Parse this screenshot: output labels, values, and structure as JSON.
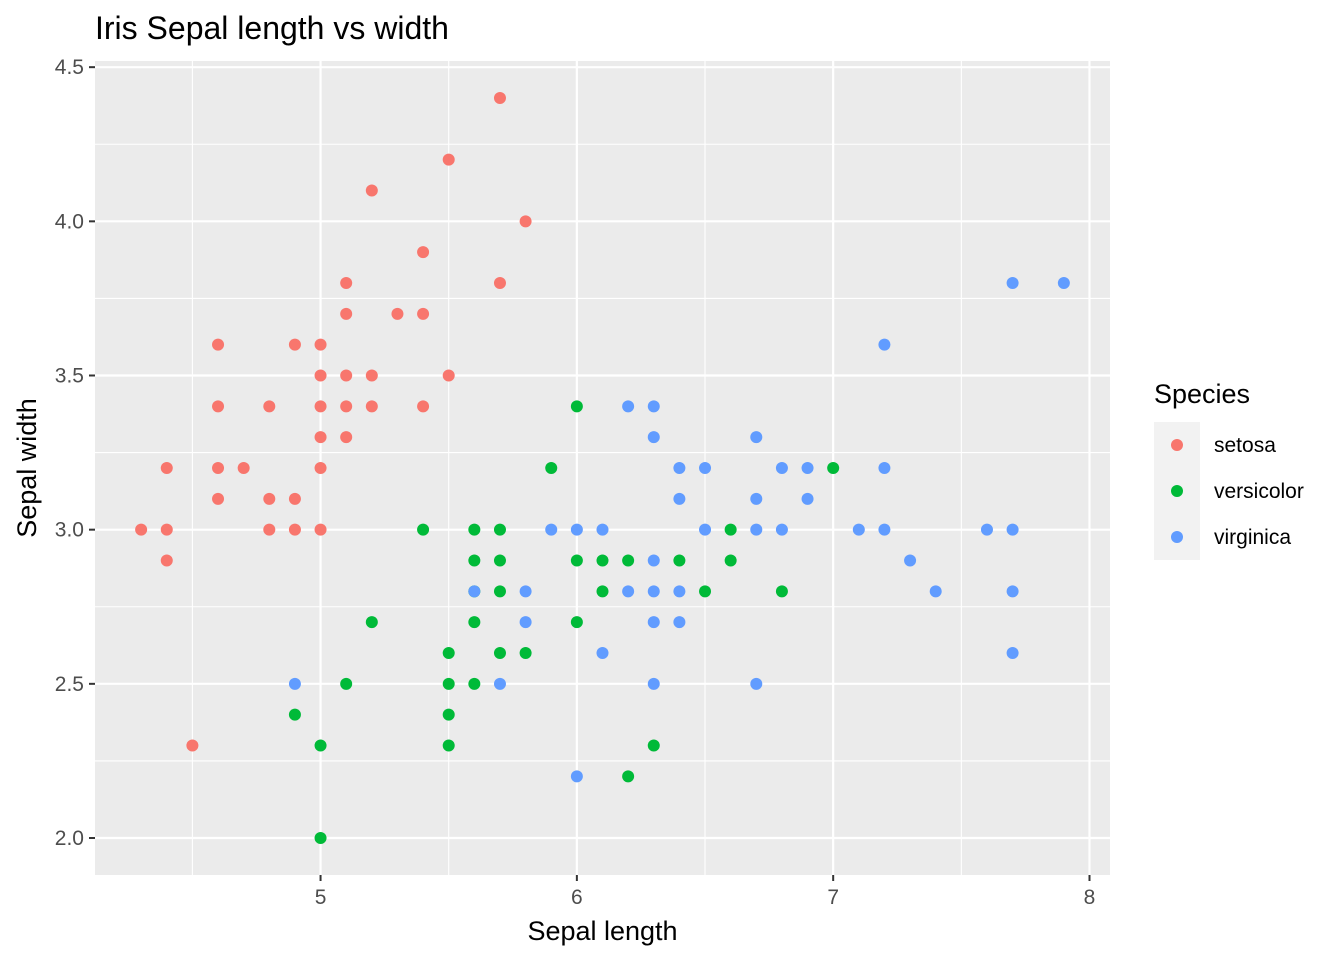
{
  "chart_data": {
    "type": "scatter",
    "title": "Iris Sepal length vs width",
    "xlabel": "Sepal length",
    "ylabel": "Sepal width",
    "xlim": [
      4.12,
      8.08
    ],
    "ylim": [
      1.88,
      4.52
    ],
    "xticks": [
      5,
      6,
      7,
      8
    ],
    "xtick_labels": [
      "5",
      "6",
      "7",
      "8"
    ],
    "yticks": [
      2.0,
      2.5,
      3.0,
      3.5,
      4.0,
      4.5
    ],
    "ytick_labels": [
      "2.0",
      "2.5",
      "3.0",
      "3.5",
      "4.0",
      "4.5"
    ],
    "grid": true,
    "legend": {
      "title": "Species",
      "position": "right",
      "entries": [
        "setosa",
        "versicolor",
        "virginica"
      ]
    },
    "colors": {
      "panel": "#ebebeb",
      "grid_major": "#ffffff",
      "setosa": "#F8766D",
      "versicolor": "#00BA38",
      "virginica": "#619CFF"
    },
    "series": [
      {
        "name": "setosa",
        "points": [
          [
            5.7,
            4.4
          ],
          [
            5.5,
            4.2
          ],
          [
            5.2,
            4.1
          ],
          [
            5.8,
            4.0
          ],
          [
            5.4,
            3.9
          ],
          [
            5.1,
            3.8
          ],
          [
            5.7,
            3.8
          ],
          [
            5.1,
            3.7
          ],
          [
            5.3,
            3.7
          ],
          [
            5.4,
            3.7
          ],
          [
            4.6,
            3.6
          ],
          [
            4.9,
            3.6
          ],
          [
            5.0,
            3.6
          ],
          [
            5.0,
            3.5
          ],
          [
            5.1,
            3.5
          ],
          [
            5.2,
            3.5
          ],
          [
            5.5,
            3.5
          ],
          [
            4.6,
            3.4
          ],
          [
            4.8,
            3.4
          ],
          [
            5.0,
            3.4
          ],
          [
            5.1,
            3.4
          ],
          [
            5.2,
            3.4
          ],
          [
            5.4,
            3.4
          ],
          [
            5.0,
            3.3
          ],
          [
            5.1,
            3.3
          ],
          [
            4.4,
            3.2
          ],
          [
            4.6,
            3.2
          ],
          [
            4.7,
            3.2
          ],
          [
            5.0,
            3.2
          ],
          [
            4.6,
            3.1
          ],
          [
            4.8,
            3.1
          ],
          [
            4.9,
            3.1
          ],
          [
            4.3,
            3.0
          ],
          [
            4.4,
            3.0
          ],
          [
            4.8,
            3.0
          ],
          [
            4.9,
            3.0
          ],
          [
            5.0,
            3.0
          ],
          [
            4.4,
            2.9
          ],
          [
            4.5,
            2.3
          ]
        ]
      },
      {
        "name": "versicolor",
        "points": [
          [
            6.0,
            3.4
          ],
          [
            5.9,
            3.2
          ],
          [
            7.0,
            3.2
          ],
          [
            5.4,
            3.0
          ],
          [
            5.6,
            3.0
          ],
          [
            5.7,
            3.0
          ],
          [
            6.6,
            3.0
          ],
          [
            5.6,
            2.9
          ],
          [
            5.7,
            2.9
          ],
          [
            6.0,
            2.9
          ],
          [
            6.1,
            2.9
          ],
          [
            6.2,
            2.9
          ],
          [
            6.4,
            2.9
          ],
          [
            6.6,
            2.9
          ],
          [
            5.6,
            2.8
          ],
          [
            5.7,
            2.8
          ],
          [
            6.1,
            2.8
          ],
          [
            6.5,
            2.8
          ],
          [
            6.8,
            2.8
          ],
          [
            5.2,
            2.7
          ],
          [
            5.6,
            2.7
          ],
          [
            6.0,
            2.7
          ],
          [
            5.5,
            2.6
          ],
          [
            5.7,
            2.6
          ],
          [
            5.8,
            2.6
          ],
          [
            5.1,
            2.5
          ],
          [
            5.5,
            2.5
          ],
          [
            5.6,
            2.5
          ],
          [
            4.9,
            2.4
          ],
          [
            5.5,
            2.4
          ],
          [
            5.0,
            2.3
          ],
          [
            5.5,
            2.3
          ],
          [
            6.3,
            2.3
          ],
          [
            6.2,
            2.2
          ],
          [
            5.0,
            2.0
          ]
        ]
      },
      {
        "name": "virginica",
        "points": [
          [
            7.7,
            3.8
          ],
          [
            7.9,
            3.8
          ],
          [
            7.2,
            3.6
          ],
          [
            6.2,
            3.4
          ],
          [
            6.3,
            3.4
          ],
          [
            6.3,
            3.3
          ],
          [
            6.7,
            3.3
          ],
          [
            6.4,
            3.2
          ],
          [
            6.5,
            3.2
          ],
          [
            6.8,
            3.2
          ],
          [
            6.9,
            3.2
          ],
          [
            7.2,
            3.2
          ],
          [
            6.4,
            3.1
          ],
          [
            6.7,
            3.1
          ],
          [
            6.9,
            3.1
          ],
          [
            5.9,
            3.0
          ],
          [
            6.0,
            3.0
          ],
          [
            6.1,
            3.0
          ],
          [
            6.5,
            3.0
          ],
          [
            6.7,
            3.0
          ],
          [
            6.8,
            3.0
          ],
          [
            7.1,
            3.0
          ],
          [
            7.2,
            3.0
          ],
          [
            7.6,
            3.0
          ],
          [
            7.7,
            3.0
          ],
          [
            6.3,
            2.9
          ],
          [
            7.3,
            2.9
          ],
          [
            5.6,
            2.8
          ],
          [
            5.8,
            2.8
          ],
          [
            6.2,
            2.8
          ],
          [
            6.3,
            2.8
          ],
          [
            6.4,
            2.8
          ],
          [
            7.4,
            2.8
          ],
          [
            7.7,
            2.8
          ],
          [
            5.8,
            2.7
          ],
          [
            6.3,
            2.7
          ],
          [
            6.4,
            2.7
          ],
          [
            6.1,
            2.6
          ],
          [
            7.7,
            2.6
          ],
          [
            4.9,
            2.5
          ],
          [
            5.7,
            2.5
          ],
          [
            6.3,
            2.5
          ],
          [
            6.7,
            2.5
          ],
          [
            6.0,
            2.2
          ]
        ]
      }
    ]
  }
}
